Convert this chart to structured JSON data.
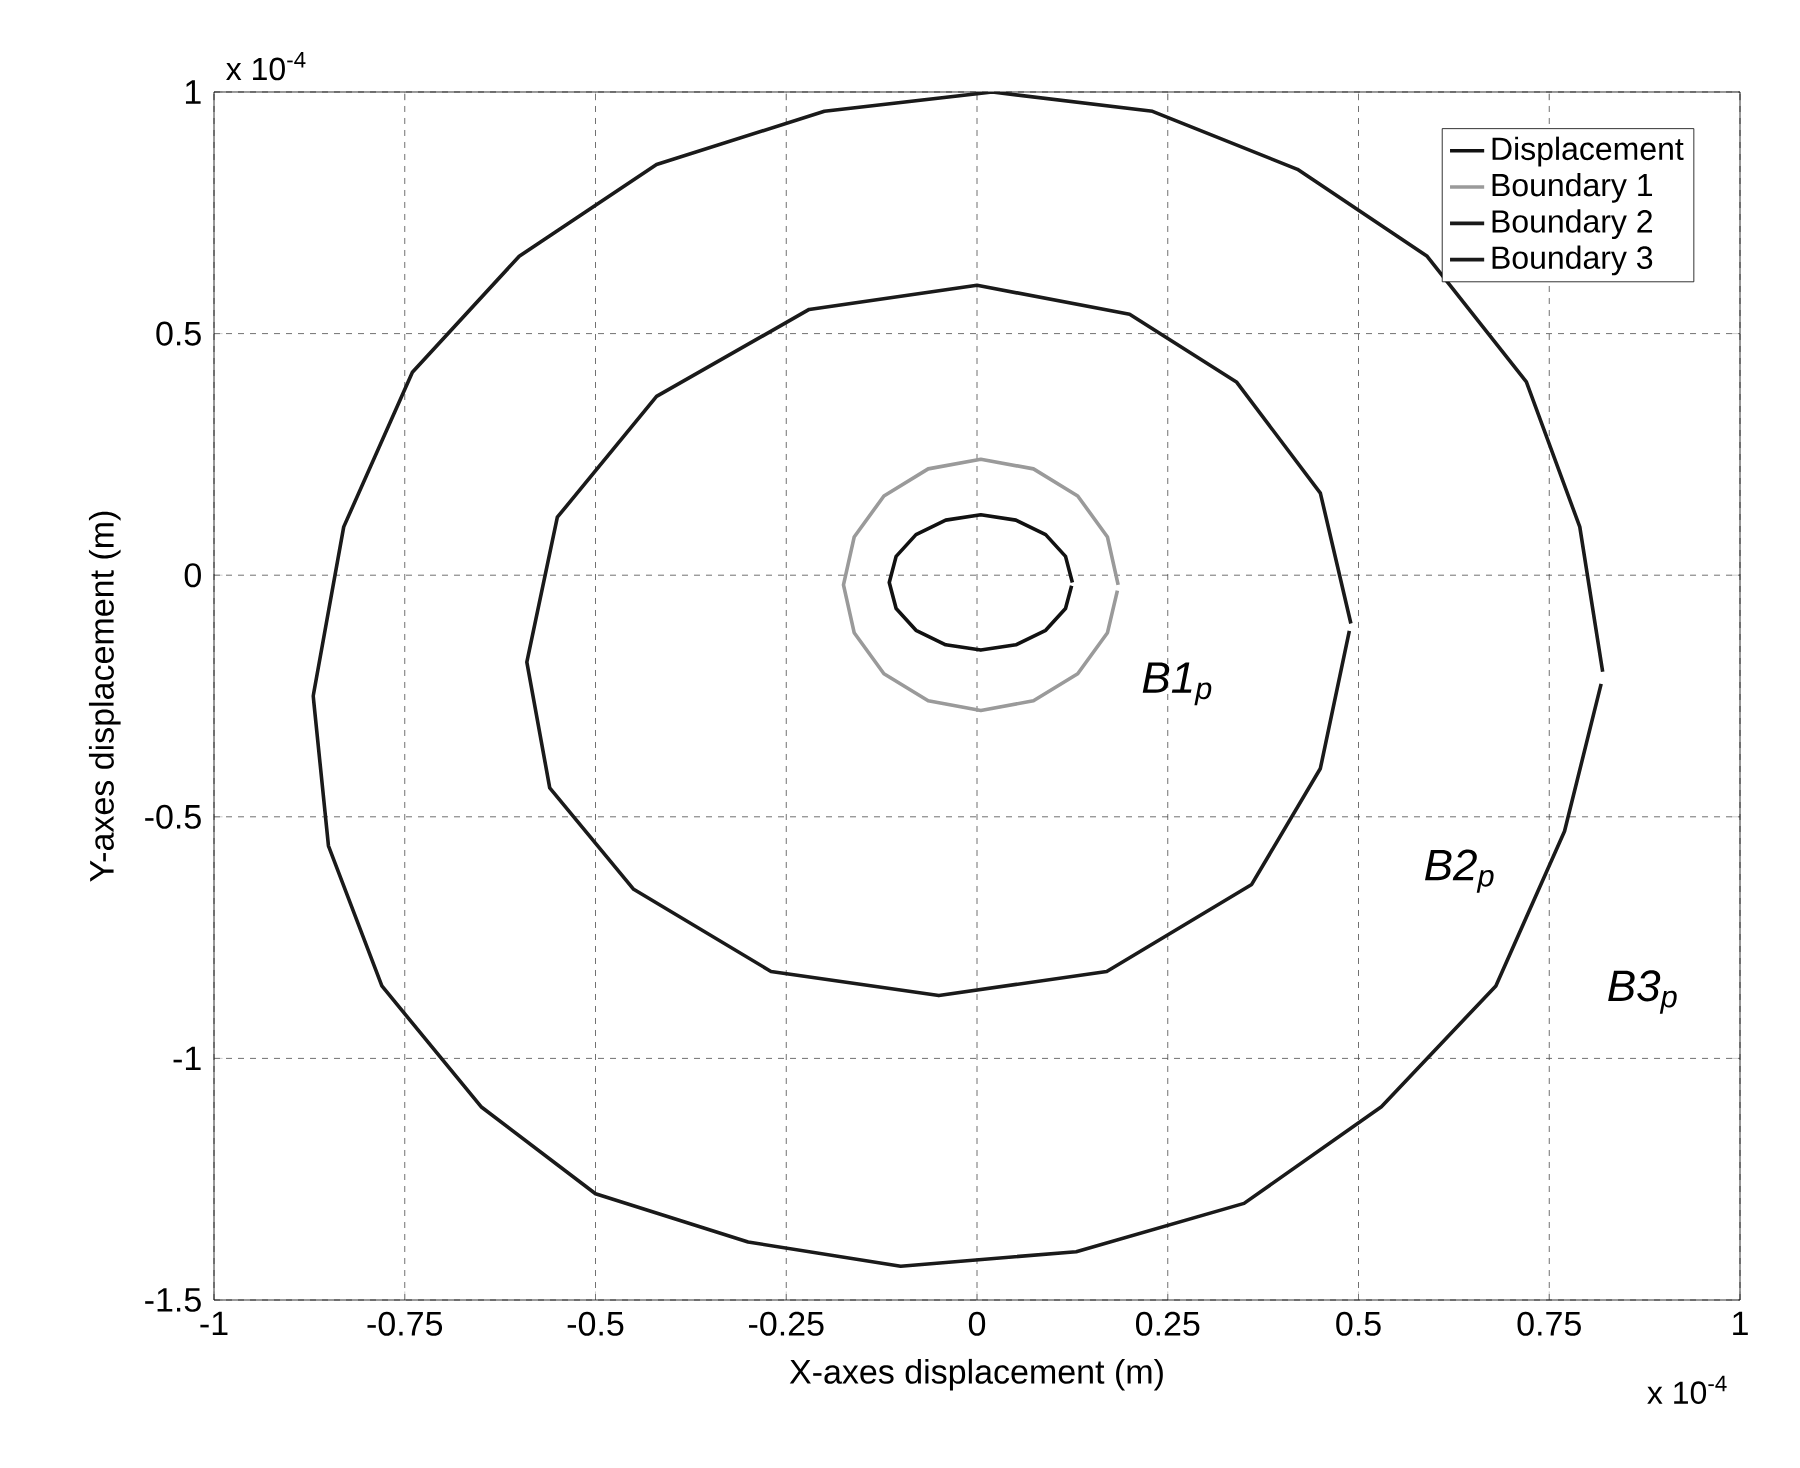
{
  "chart_data": {
    "type": "line",
    "xlabel": "X-axes displacement (m)",
    "ylabel": "Y-axes displacement (m)",
    "xlim": [
      -1,
      1
    ],
    "ylim": [
      -1.5,
      1
    ],
    "xticks": [
      -1,
      -0.75,
      -0.5,
      -0.25,
      0,
      0.25,
      0.5,
      0.75,
      1
    ],
    "yticks": [
      -1.5,
      -1,
      -0.5,
      0,
      0.5,
      1
    ],
    "grid": true,
    "legend": "top right",
    "marker": "none",
    "line_style": "solid",
    "series": [
      {
        "name": "Displacement",
        "color": "#111111",
        "x": [
          0.125,
          0.116,
          0.09,
          0.051,
          0.005,
          -0.041,
          -0.08,
          -0.106,
          -0.115,
          -0.106,
          -0.08,
          -0.041,
          0.005,
          0.051,
          0.09,
          0.116,
          0.124
        ],
        "values": [
          -0.015,
          0.039,
          0.084,
          0.114,
          0.125,
          0.114,
          0.084,
          0.039,
          -0.015,
          -0.069,
          -0.114,
          -0.144,
          -0.155,
          -0.144,
          -0.114,
          -0.069,
          -0.022
        ]
      },
      {
        "name": "Boundary 1",
        "color": "#9a9a9a",
        "x": [
          0.185,
          0.171,
          0.132,
          0.074,
          0.005,
          -0.064,
          -0.122,
          -0.161,
          -0.175,
          -0.161,
          -0.122,
          -0.064,
          0.005,
          0.074,
          0.132,
          0.171,
          0.184
        ],
        "values": [
          -0.02,
          0.079,
          0.164,
          0.22,
          0.24,
          0.22,
          0.164,
          0.079,
          -0.02,
          -0.119,
          -0.204,
          -0.26,
          -0.28,
          -0.26,
          -0.204,
          -0.119,
          -0.032
        ]
      },
      {
        "name": "Boundary 2",
        "color": "#1a1a1a",
        "x": [
          0.49,
          0.45,
          0.34,
          0.2,
          0.0,
          -0.22,
          -0.42,
          -0.55,
          -0.59,
          -0.56,
          -0.45,
          -0.27,
          -0.05,
          0.17,
          0.36,
          0.45,
          0.488
        ],
        "values": [
          -0.1,
          0.17,
          0.4,
          0.54,
          0.6,
          0.55,
          0.37,
          0.12,
          -0.18,
          -0.44,
          -0.65,
          -0.82,
          -0.87,
          -0.82,
          -0.64,
          -0.4,
          -0.115
        ]
      },
      {
        "name": "Boundary 3",
        "color": "#1a1a1a",
        "x": [
          0.82,
          0.79,
          0.72,
          0.59,
          0.42,
          0.23,
          0.02,
          -0.2,
          -0.42,
          -0.6,
          -0.74,
          -0.83,
          -0.87,
          -0.85,
          -0.78,
          -0.65,
          -0.5,
          -0.3,
          -0.1,
          0.13,
          0.35,
          0.53,
          0.68,
          0.77,
          0.818
        ],
        "values": [
          -0.2,
          0.1,
          0.4,
          0.66,
          0.84,
          0.96,
          1.0,
          0.96,
          0.85,
          0.66,
          0.42,
          0.1,
          -0.25,
          -0.56,
          -0.85,
          -1.1,
          -1.28,
          -1.38,
          -1.43,
          -1.4,
          -1.3,
          -1.1,
          -0.85,
          -0.53,
          -0.225
        ]
      }
    ],
    "annotations": [
      "x 10$^{-4}$",
      "x 10$^{-4}$",
      "B1$_{p}$",
      "B2$_{p}$",
      "B3$_{p}$"
    ]
  }
}
